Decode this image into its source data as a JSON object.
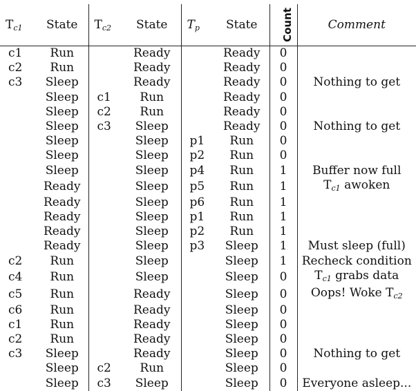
{
  "headers": {
    "tc1": {
      "base": "T",
      "sub": "c1"
    },
    "state1": "State",
    "tc2": {
      "base": "T",
      "sub": "c2"
    },
    "state2": "State",
    "tp": {
      "base": "T",
      "sub": "p"
    },
    "state3": "State",
    "count": "Count",
    "comment": "Comment"
  },
  "rows": [
    {
      "tc1": "c1",
      "s1": "Run",
      "tc2": "",
      "s2": "Ready",
      "tp": "",
      "s3": "Ready",
      "count": "0",
      "comment": ""
    },
    {
      "tc1": "c2",
      "s1": "Run",
      "tc2": "",
      "s2": "Ready",
      "tp": "",
      "s3": "Ready",
      "count": "0",
      "comment": ""
    },
    {
      "tc1": "c3",
      "s1": "Sleep",
      "tc2": "",
      "s2": "Ready",
      "tp": "",
      "s3": "Ready",
      "count": "0",
      "comment": "Nothing to get"
    },
    {
      "tc1": "",
      "s1": "Sleep",
      "tc2": "c1",
      "s2": "Run",
      "tp": "",
      "s3": "Ready",
      "count": "0",
      "comment": ""
    },
    {
      "tc1": "",
      "s1": "Sleep",
      "tc2": "c2",
      "s2": "Run",
      "tp": "",
      "s3": "Ready",
      "count": "0",
      "comment": ""
    },
    {
      "tc1": "",
      "s1": "Sleep",
      "tc2": "c3",
      "s2": "Sleep",
      "tp": "",
      "s3": "Ready",
      "count": "0",
      "comment": "Nothing to get"
    },
    {
      "tc1": "",
      "s1": "Sleep",
      "tc2": "",
      "s2": "Sleep",
      "tp": "p1",
      "s3": "Run",
      "count": "0",
      "comment": ""
    },
    {
      "tc1": "",
      "s1": "Sleep",
      "tc2": "",
      "s2": "Sleep",
      "tp": "p2",
      "s3": "Run",
      "count": "0",
      "comment": ""
    },
    {
      "tc1": "",
      "s1": "Sleep",
      "tc2": "",
      "s2": "Sleep",
      "tp": "p4",
      "s3": "Run",
      "count": "1",
      "comment": "Buffer now full"
    },
    {
      "tc1": "",
      "s1": "Ready",
      "tc2": "",
      "s2": "Sleep",
      "tp": "p5",
      "s3": "Run",
      "count": "1",
      "comment": "T_c1 awoken"
    },
    {
      "tc1": "",
      "s1": "Ready",
      "tc2": "",
      "s2": "Sleep",
      "tp": "p6",
      "s3": "Run",
      "count": "1",
      "comment": ""
    },
    {
      "tc1": "",
      "s1": "Ready",
      "tc2": "",
      "s2": "Sleep",
      "tp": "p1",
      "s3": "Run",
      "count": "1",
      "comment": ""
    },
    {
      "tc1": "",
      "s1": "Ready",
      "tc2": "",
      "s2": "Sleep",
      "tp": "p2",
      "s3": "Run",
      "count": "1",
      "comment": ""
    },
    {
      "tc1": "",
      "s1": "Ready",
      "tc2": "",
      "s2": "Sleep",
      "tp": "p3",
      "s3": "Sleep",
      "count": "1",
      "comment": "Must sleep (full)"
    },
    {
      "tc1": "c2",
      "s1": "Run",
      "tc2": "",
      "s2": "Sleep",
      "tp": "",
      "s3": "Sleep",
      "count": "1",
      "comment": "Recheck condition"
    },
    {
      "tc1": "c4",
      "s1": "Run",
      "tc2": "",
      "s2": "Sleep",
      "tp": "",
      "s3": "Sleep",
      "count": "0",
      "comment": "T_c1 grabs data"
    },
    {
      "tc1": "c5",
      "s1": "Run",
      "tc2": "",
      "s2": "Ready",
      "tp": "",
      "s3": "Sleep",
      "count": "0",
      "comment": "Oops! Woke T_c2"
    },
    {
      "tc1": "c6",
      "s1": "Run",
      "tc2": "",
      "s2": "Ready",
      "tp": "",
      "s3": "Sleep",
      "count": "0",
      "comment": ""
    },
    {
      "tc1": "c1",
      "s1": "Run",
      "tc2": "",
      "s2": "Ready",
      "tp": "",
      "s3": "Sleep",
      "count": "0",
      "comment": ""
    },
    {
      "tc1": "c2",
      "s1": "Run",
      "tc2": "",
      "s2": "Ready",
      "tp": "",
      "s3": "Sleep",
      "count": "0",
      "comment": ""
    },
    {
      "tc1": "c3",
      "s1": "Sleep",
      "tc2": "",
      "s2": "Ready",
      "tp": "",
      "s3": "Sleep",
      "count": "0",
      "comment": "Nothing to get"
    },
    {
      "tc1": "",
      "s1": "Sleep",
      "tc2": "c2",
      "s2": "Run",
      "tp": "",
      "s3": "Sleep",
      "count": "0",
      "comment": ""
    },
    {
      "tc1": "",
      "s1": "Sleep",
      "tc2": "c3",
      "s2": "Sleep",
      "tp": "",
      "s3": "Sleep",
      "count": "0",
      "comment": "Everyone asleep..."
    }
  ]
}
